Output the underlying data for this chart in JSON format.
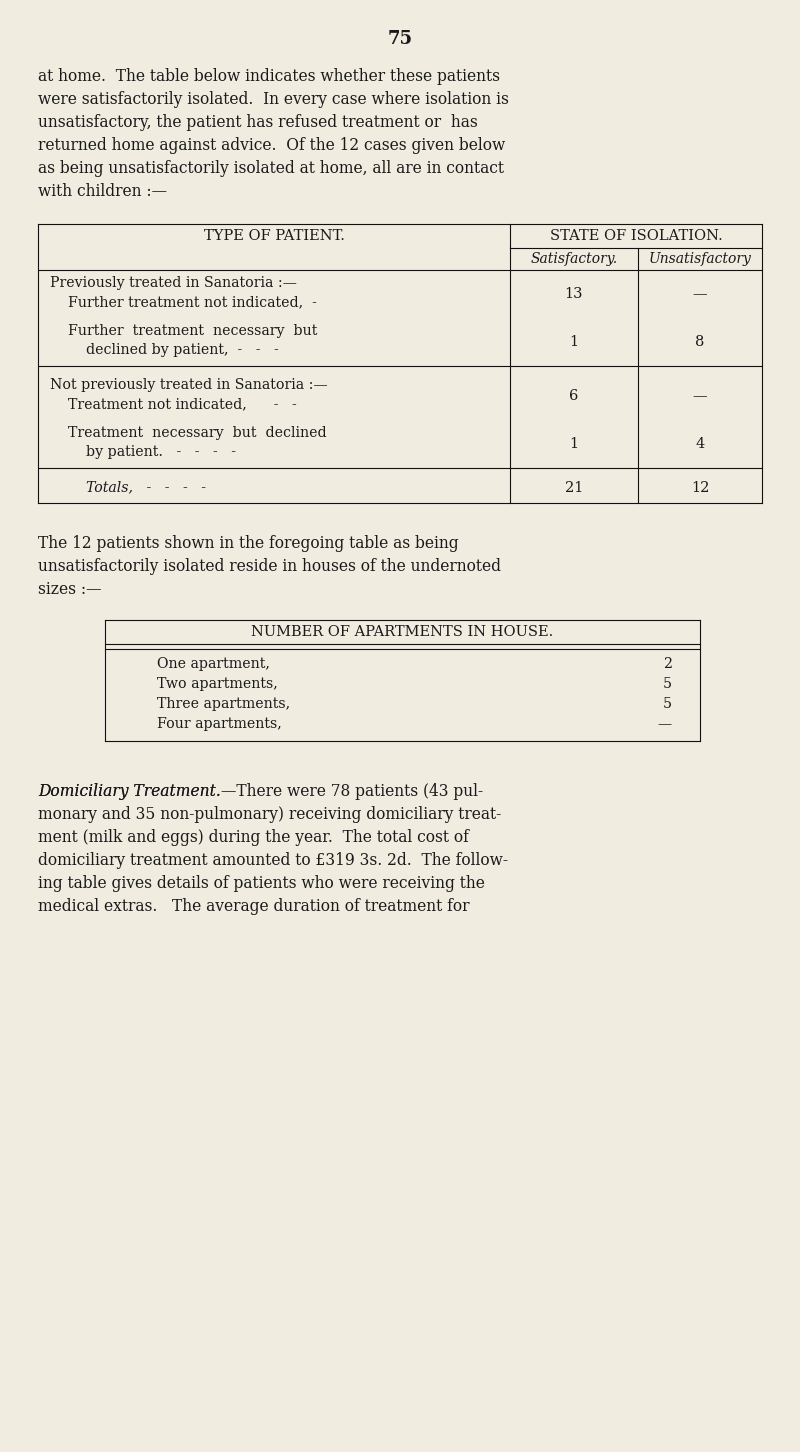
{
  "bg_color": "#f0ece0",
  "text_color": "#1a1a1a",
  "page_number": "75",
  "para1_lines": [
    "at home.  The table below indicates whether these patients",
    "were satisfactorily isolated.  In every case where isolation is",
    "unsatisfactory, the patient has refused treatment or  has",
    "returned home against advice.  Of the 12 cases given below",
    "as being unsatisfactorily isolated at home, all are in contact",
    "with children :—"
  ],
  "table1_col0_header": "TYPE OF PATIENT.",
  "table1_state_header": "STATE OF ISOLATION.",
  "table1_sat_header": "Satisfactory.",
  "table1_unsat_header": "Unsatisfactory",
  "table1_rows": [
    {
      "lines": [
        "Previously treated in Sanatoria :—",
        "    Further treatment not indicated,  -"
      ],
      "sat": "13",
      "unsat": "—",
      "sep_after": false,
      "is_total": false
    },
    {
      "lines": [
        "    Further  treatment  necessary  but",
        "        declined by patient,  -   -   -"
      ],
      "sat": "1",
      "unsat": "8",
      "sep_after": true,
      "is_total": false
    },
    {
      "lines": [
        "Not previously treated in Sanatoria :—",
        "    Treatment not indicated,      -   -"
      ],
      "sat": "6",
      "unsat": "—",
      "sep_after": false,
      "is_total": false
    },
    {
      "lines": [
        "    Treatment  necessary  but  declined",
        "        by patient.   -   -   -   -"
      ],
      "sat": "1",
      "unsat": "4",
      "sep_after": true,
      "is_total": false
    },
    {
      "lines": [
        "        Totals,   -   -   -   -"
      ],
      "sat": "21",
      "unsat": "12",
      "sep_after": false,
      "is_total": true
    }
  ],
  "para2_lines": [
    "The 12 patients shown in the foregoing table as being",
    "unsatisfactorily isolated reside in houses of the undernoted",
    "sizes :—"
  ],
  "table2_title": "NUMBER OF APARTMENTS IN HOUSE.",
  "table2_rows": [
    [
      "One apartment,",
      "-",
      "-",
      "-",
      "-",
      "-",
      "2"
    ],
    [
      "Two apartments,",
      "-",
      "-",
      "-",
      "-",
      "-",
      "5"
    ],
    [
      "Three apartments,",
      "-",
      "-",
      "-",
      "-",
      "-",
      "5"
    ],
    [
      "Four apartments,",
      "-",
      "-",
      "-",
      "-",
      "-",
      "—"
    ]
  ],
  "para3_italic": "Domiciliary Treatment.",
  "para3_lines": [
    "—There were 78 patients (43 pul-",
    "monary and 35 non-pulmonary) receiving domiciliary treat-",
    "ment (milk and eggs) during the year.  The total cost of",
    "domiciliary treatment amounted to £319 3s. 2d.  The follow-",
    "ing table gives details of patients who were receiving the",
    "medical extras.   The average duration of treatment for"
  ]
}
